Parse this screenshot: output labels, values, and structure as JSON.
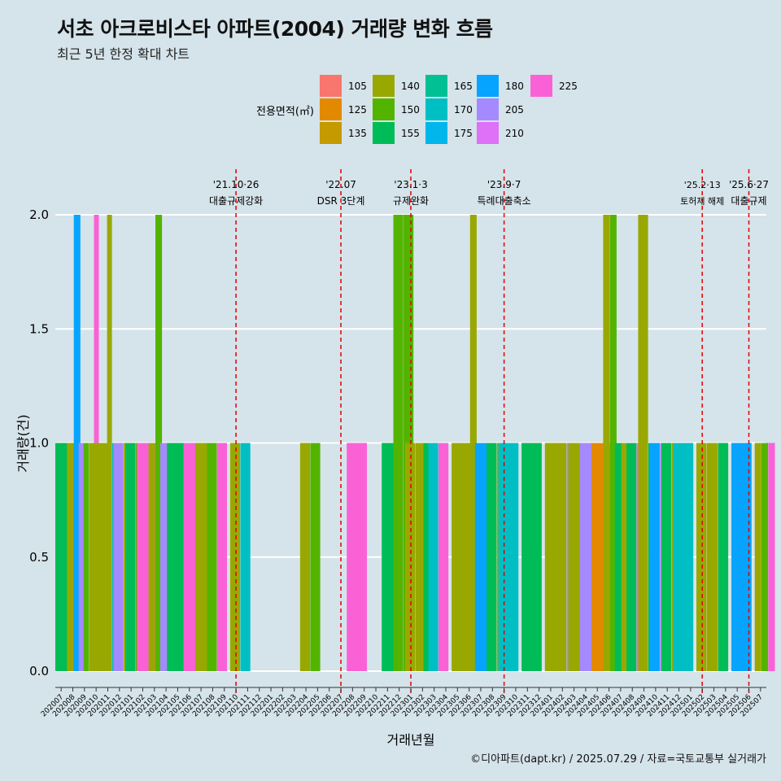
{
  "title": "서초 아크로비스타 아파트(2004) 거래량 변화 흐름",
  "subtitle": "최근 5년 한정 확대 차트",
  "caption": "©디아파트(dapt.kr) / 2025.07.29 / 자료=국토교통부 실거래가",
  "chart_data": {
    "type": "bar",
    "xlabel": "거래년월",
    "ylabel": "거래량(건)",
    "ylim": [
      0,
      2
    ],
    "yticks": [
      "0.0",
      "0.5",
      "1.0",
      "1.5",
      "2.0"
    ],
    "grid": true,
    "legend": {
      "title": "전용면적(㎡)",
      "position": "top",
      "items": [
        {
          "label": "105",
          "color": "#F8766D"
        },
        {
          "label": "125",
          "color": "#E38900"
        },
        {
          "label": "135",
          "color": "#C49A00"
        },
        {
          "label": "140",
          "color": "#99A800"
        },
        {
          "label": "150",
          "color": "#53B400"
        },
        {
          "label": "155",
          "color": "#00BC56"
        },
        {
          "label": "165",
          "color": "#00C094"
        },
        {
          "label": "170",
          "color": "#00BFC4"
        },
        {
          "label": "175",
          "color": "#00B6EB"
        },
        {
          "label": "180",
          "color": "#06A4FF"
        },
        {
          "label": "205",
          "color": "#A58AFF"
        },
        {
          "label": "210",
          "color": "#DF70F8"
        },
        {
          "label": "225",
          "color": "#FB61D7"
        }
      ]
    },
    "categories": [
      "202007",
      "202008",
      "202009",
      "202010",
      "202011",
      "202012",
      "202101",
      "202102",
      "202103",
      "202104",
      "202105",
      "202106",
      "202107",
      "202108",
      "202109",
      "202110",
      "202111",
      "202112",
      "202201",
      "202202",
      "202203",
      "202204",
      "202205",
      "202206",
      "202207",
      "202208",
      "202209",
      "202210",
      "202211",
      "202212",
      "202301",
      "202302",
      "202303",
      "202304",
      "202305",
      "202306",
      "202307",
      "202308",
      "202309",
      "202310",
      "202311",
      "202312",
      "202401",
      "202402",
      "202403",
      "202404",
      "202405",
      "202406",
      "202407",
      "202408",
      "202409",
      "202410",
      "202411",
      "202412",
      "202501",
      "202502",
      "202503",
      "202504",
      "202505",
      "202506",
      "202507"
    ],
    "bars": [
      {
        "month": "202007",
        "segments": [
          {
            "area": "155",
            "value": 1
          }
        ]
      },
      {
        "month": "202008",
        "segments": [
          {
            "area": "140",
            "value": 1
          },
          {
            "area": "180",
            "value": 2
          },
          {
            "area": "170",
            "value": 1
          }
        ]
      },
      {
        "month": "202009",
        "segments": [
          {
            "area": "205",
            "value": 1
          },
          {
            "area": "150",
            "value": 1
          },
          {
            "area": "140",
            "value": 1
          },
          {
            "area": "225",
            "value": 2
          }
        ]
      },
      {
        "month": "202010",
        "segments": [
          {
            "area": "140",
            "value": 1
          }
        ]
      },
      {
        "month": "202011",
        "segments": [
          {
            "area": "140",
            "value": 1
          },
          {
            "area": "140",
            "value": 2
          },
          {
            "area": "170",
            "value": 1
          },
          {
            "area": "155",
            "value": 1
          }
        ]
      },
      {
        "month": "202012",
        "segments": [
          {
            "area": "205",
            "value": 1
          },
          {
            "area": "140",
            "value": 1
          }
        ]
      },
      {
        "month": "202101",
        "segments": [
          {
            "area": "155",
            "value": 1
          },
          {
            "area": "150",
            "value": 1
          }
        ]
      },
      {
        "month": "202102",
        "segments": [
          {
            "area": "225",
            "value": 1
          }
        ]
      },
      {
        "month": "202103",
        "segments": [
          {
            "area": "140",
            "value": 1
          },
          {
            "area": "150",
            "value": 2
          },
          {
            "area": "140",
            "value": 1
          }
        ]
      },
      {
        "month": "202104",
        "segments": [
          {
            "area": "205",
            "value": 1
          },
          {
            "area": "155",
            "value": 1
          },
          {
            "area": "170",
            "value": 1
          }
        ]
      },
      {
        "month": "202105",
        "segments": [
          {
            "area": "155",
            "value": 1
          }
        ]
      },
      {
        "month": "202106",
        "segments": [
          {
            "area": "225",
            "value": 1
          }
        ]
      },
      {
        "month": "202107",
        "segments": [
          {
            "area": "140",
            "value": 1
          }
        ]
      },
      {
        "month": "202108",
        "segments": [
          {
            "area": "150",
            "value": 1
          },
          {
            "area": "225",
            "value": 1
          }
        ]
      },
      {
        "month": "202110",
        "segments": [
          {
            "area": "140",
            "value": 1
          },
          {
            "area": "170",
            "value": 1
          }
        ]
      },
      {
        "month": "202204",
        "segments": [
          {
            "area": "140",
            "value": 1
          },
          {
            "area": "150",
            "value": 1
          }
        ]
      },
      {
        "month": "202208",
        "segments": [
          {
            "area": "225",
            "value": 1
          }
        ]
      },
      {
        "month": "202211",
        "segments": [
          {
            "area": "155",
            "value": 1
          }
        ]
      },
      {
        "month": "202212",
        "segments": [
          {
            "area": "150",
            "value": 2
          },
          {
            "area": "150",
            "value": 2
          }
        ]
      },
      {
        "month": "202301",
        "segments": [
          {
            "area": "140",
            "value": 1
          },
          {
            "area": "140",
            "value": 1
          }
        ]
      },
      {
        "month": "202302",
        "segments": [
          {
            "area": "140",
            "value": 1
          },
          {
            "area": "155",
            "value": 1
          },
          {
            "area": "140",
            "value": 1
          }
        ]
      },
      {
        "month": "202303",
        "segments": [
          {
            "area": "170",
            "value": 1
          },
          {
            "area": "225",
            "value": 1
          }
        ]
      },
      {
        "month": "202305",
        "segments": [
          {
            "area": "140",
            "value": 1
          }
        ]
      },
      {
        "month": "202306",
        "segments": [
          {
            "area": "140",
            "value": 1
          },
          {
            "area": "140",
            "value": 2
          },
          {
            "area": "155",
            "value": 1
          }
        ]
      },
      {
        "month": "202307",
        "segments": [
          {
            "area": "180",
            "value": 1
          }
        ]
      },
      {
        "month": "202308",
        "segments": [
          {
            "area": "155",
            "value": 1
          },
          {
            "area": "140",
            "value": 1
          }
        ]
      },
      {
        "month": "202309",
        "segments": [
          {
            "area": "170",
            "value": 1
          }
        ]
      },
      {
        "month": "202311",
        "segments": [
          {
            "area": "155",
            "value": 1
          }
        ]
      },
      {
        "month": "202401",
        "segments": [
          {
            "area": "140",
            "value": 1
          }
        ]
      },
      {
        "month": "202402",
        "segments": [
          {
            "area": "140",
            "value": 1
          },
          {
            "area": "205",
            "value": 1
          }
        ]
      },
      {
        "month": "202403",
        "segments": [
          {
            "area": "140",
            "value": 1
          }
        ]
      },
      {
        "month": "202404",
        "segments": [
          {
            "area": "205",
            "value": 1
          }
        ]
      },
      {
        "month": "202405",
        "segments": [
          {
            "area": "125",
            "value": 1
          }
        ]
      },
      {
        "month": "202406",
        "segments": [
          {
            "area": "140",
            "value": 2
          },
          {
            "area": "150",
            "value": 2
          },
          {
            "area": "140",
            "value": 1
          }
        ]
      },
      {
        "month": "202407",
        "segments": [
          {
            "area": "155",
            "value": 1
          },
          {
            "area": "140",
            "value": 1
          },
          {
            "area": "225",
            "value": 1
          }
        ]
      },
      {
        "month": "202408",
        "segments": [
          {
            "area": "155",
            "value": 1
          },
          {
            "area": "225",
            "value": 1
          }
        ]
      },
      {
        "month": "202409",
        "segments": [
          {
            "area": "140",
            "value": 2
          },
          {
            "area": "155",
            "value": 1
          }
        ]
      },
      {
        "month": "202410",
        "segments": [
          {
            "area": "180",
            "value": 1
          },
          {
            "area": "205",
            "value": 1
          }
        ]
      },
      {
        "month": "202411",
        "segments": [
          {
            "area": "155",
            "value": 1
          },
          {
            "area": "140",
            "value": 1
          }
        ]
      },
      {
        "month": "202412",
        "segments": [
          {
            "area": "170",
            "value": 1
          }
        ]
      },
      {
        "month": "202502",
        "segments": [
          {
            "area": "140",
            "value": 1
          },
          {
            "area": "140",
            "value": 1
          }
        ]
      },
      {
        "month": "202503",
        "segments": [
          {
            "area": "140",
            "value": 1
          },
          {
            "area": "155",
            "value": 1
          }
        ]
      },
      {
        "month": "202505",
        "segments": [
          {
            "area": "180",
            "value": 1
          }
        ]
      },
      {
        "month": "202507",
        "segments": [
          {
            "area": "140",
            "value": 1
          },
          {
            "area": "150",
            "value": 1
          },
          {
            "area": "225",
            "value": 1
          }
        ]
      }
    ],
    "annotations": [
      {
        "month": "202110",
        "date": "'21.10·26",
        "label": "대출규제강화"
      },
      {
        "month": "202207",
        "date": "'22.07",
        "label": "DSR 3단계"
      },
      {
        "month": "202301",
        "date": "'23.1·3",
        "label": "규제완화"
      },
      {
        "month": "202309",
        "date": "'23.9·7",
        "label": "특례대출축소"
      },
      {
        "month": "202502",
        "date": "'25.2·13",
        "label": "토허제 해제",
        "small": true
      },
      {
        "month": "202506",
        "date": "'25.6·27",
        "label": "대출규제"
      }
    ]
  }
}
